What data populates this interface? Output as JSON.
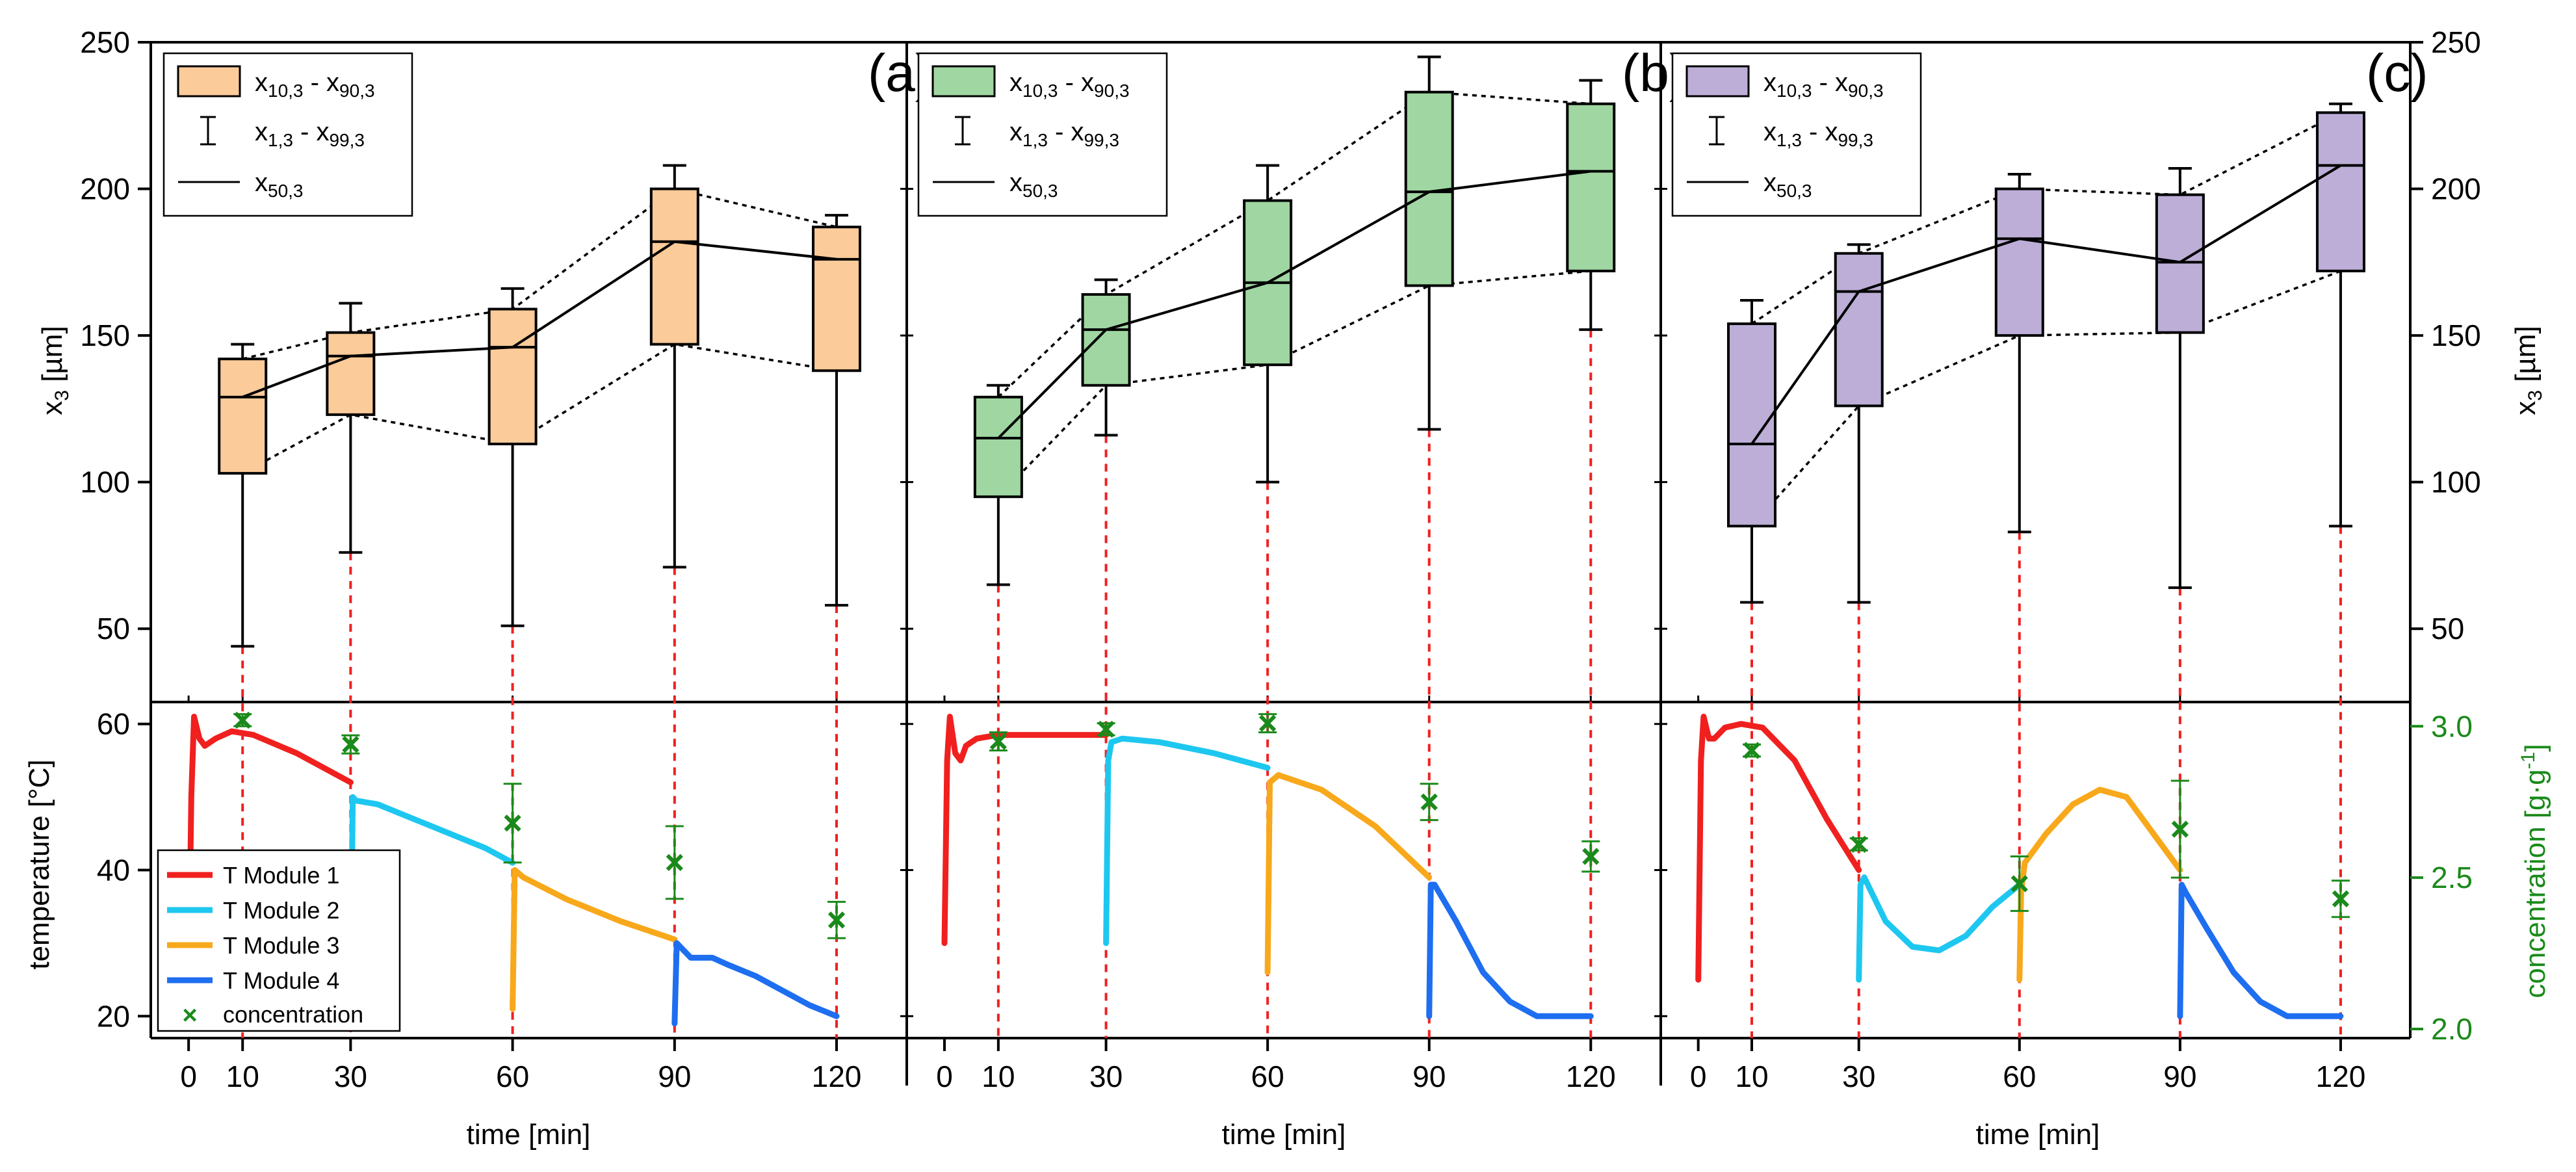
{
  "panel_labels": [
    "(a)",
    "(b)",
    "(c)"
  ],
  "top_ylabel_left": "x",
  "top_ylabel_sub": "3",
  "top_ylabel_unit": " [µm]",
  "bottom_ylabel_left": "temperature [°C]",
  "bottom_ylabel_right": "concentration [g·g",
  "bottom_ylabel_right_sup": "-1",
  "bottom_ylabel_right_end": "]",
  "xlabel": "time [min]",
  "legend_top": {
    "box_main": "x",
    "box_s1": "10,3",
    "box_mid": " - x",
    "box_s2": "90,3",
    "whisker_main": "x",
    "whisker_s1": "1,3",
    "whisker_mid": " - x",
    "whisker_s2": "99,3",
    "median_main": "x",
    "median_s1": "50,3"
  },
  "legend_bottom": [
    "T Module 1",
    "T Module 2",
    "T Module 3",
    "T Module 4",
    "concentration"
  ],
  "colors": {
    "box_a": "#fccb9a",
    "box_b": "#9fd6a1",
    "box_c": "#bcaed6",
    "module1": "#f0201f",
    "module2": "#1ec7f0",
    "module3": "#f8a81b",
    "module4": "#1e6ef0",
    "concentration": "#1a8a1a",
    "dashed_red": "#f02020"
  },
  "chart_data": [
    {
      "type": "box",
      "panel": "(a)",
      "x": [
        10,
        30,
        60,
        90,
        120
      ],
      "x10_3": [
        103,
        123,
        113,
        147,
        138
      ],
      "x90_3": [
        142,
        151,
        159,
        200,
        187
      ],
      "x50_3": [
        129,
        143,
        146,
        182,
        176
      ],
      "x1_3": [
        44,
        76,
        51,
        71,
        58
      ],
      "x99_3": [
        147,
        161,
        166,
        208,
        191
      ],
      "ylabel": "x3 [µm]",
      "ylim": [
        25,
        250
      ],
      "xlim": [
        -7,
        133
      ],
      "yticks": [
        50,
        100,
        150,
        200,
        250
      ]
    },
    {
      "type": "box",
      "panel": "(b)",
      "x": [
        10,
        30,
        60,
        90,
        120
      ],
      "x10_3": [
        95,
        133,
        140,
        167,
        172
      ],
      "x90_3": [
        129,
        164,
        196,
        233,
        229
      ],
      "x50_3": [
        115,
        152,
        168,
        199,
        206
      ],
      "x1_3": [
        65,
        116,
        100,
        118,
        152
      ],
      "x99_3": [
        133,
        169,
        208,
        245,
        237
      ],
      "ylim": [
        25,
        250
      ],
      "xlim": [
        -7,
        133
      ]
    },
    {
      "type": "box",
      "panel": "(c)",
      "x": [
        10,
        30,
        60,
        90,
        120
      ],
      "x10_3": [
        85,
        126,
        150,
        151,
        172
      ],
      "x90_3": [
        154,
        178,
        200,
        198,
        226
      ],
      "x50_3": [
        113,
        165,
        183,
        175,
        208
      ],
      "x1_3": [
        59,
        59,
        83,
        64,
        85
      ],
      "x99_3": [
        162,
        181,
        205,
        207,
        229
      ],
      "ylabel": "x3 [µm]",
      "ylim": [
        25,
        250
      ],
      "xlim": [
        -7,
        133
      ],
      "yticks": [
        50,
        100,
        150,
        200,
        250
      ]
    },
    {
      "type": "line",
      "panel": "(a)",
      "ylabel": "temperature [°C]",
      "xlabel": "time [min]",
      "ylim": [
        17,
        63
      ],
      "xlim": [
        -7,
        133
      ],
      "yticks": [
        20,
        40,
        60
      ],
      "xticks": [
        0,
        10,
        30,
        60,
        90,
        120
      ],
      "series": [
        {
          "name": "T Module 1",
          "x": [
            0,
            0.5,
            1,
            2,
            3,
            5,
            8,
            12,
            20,
            30
          ],
          "y": [
            23,
            50,
            61,
            58,
            57,
            58,
            59,
            58.5,
            56,
            52
          ]
        },
        {
          "name": "T Module 2",
          "x": [
            30,
            30.4,
            31,
            35,
            45,
            55,
            60
          ],
          "y": [
            22,
            50,
            49.5,
            49,
            46,
            43,
            41
          ]
        },
        {
          "name": "T Module 3",
          "x": [
            60,
            60.4,
            62,
            70,
            80,
            90
          ],
          "y": [
            21,
            40,
            39,
            36,
            33,
            30.5
          ]
        },
        {
          "name": "T Module 4",
          "x": [
            90,
            90.4,
            93,
            97,
            100,
            105,
            110,
            115,
            120
          ],
          "y": [
            19,
            30,
            28,
            28,
            27,
            25.5,
            23.5,
            21.5,
            20
          ]
        }
      ],
      "concentration": {
        "x": [
          10,
          30,
          60,
          90,
          120
        ],
        "y": [
          3.02,
          2.94,
          2.68,
          2.55,
          2.36
        ],
        "err": [
          0.02,
          0.03,
          0.13,
          0.12,
          0.06
        ]
      }
    },
    {
      "type": "line",
      "panel": "(b)",
      "ylim": [
        17,
        63
      ],
      "xlim": [
        -7,
        133
      ],
      "series": [
        {
          "name": "T Module 1",
          "x": [
            0,
            0.5,
            1,
            2,
            3,
            4,
            6,
            10,
            20,
            30
          ],
          "y": [
            30,
            55,
            61,
            56,
            55,
            57,
            58,
            58.5,
            58.5,
            58.5
          ]
        },
        {
          "name": "T Module 2",
          "x": [
            30,
            30.4,
            31,
            33,
            40,
            50,
            60
          ],
          "y": [
            30,
            55,
            57.5,
            58,
            57.5,
            56,
            54
          ]
        },
        {
          "name": "T Module 3",
          "x": [
            60,
            60.4,
            62,
            70,
            80,
            90
          ],
          "y": [
            26,
            52,
            53,
            51,
            46,
            39
          ]
        },
        {
          "name": "T Module 4",
          "x": [
            90,
            90.3,
            91,
            95,
            100,
            105,
            110,
            115,
            120
          ],
          "y": [
            20,
            38,
            38,
            33,
            26,
            22,
            20,
            20,
            20
          ]
        }
      ],
      "concentration": {
        "x": [
          10,
          30,
          60,
          90,
          120
        ],
        "y": [
          2.95,
          2.99,
          3.01,
          2.75,
          2.57
        ],
        "err": [
          0.03,
          0.02,
          0.03,
          0.06,
          0.05
        ]
      }
    },
    {
      "type": "line",
      "panel": "(c)",
      "ylim": [
        17,
        63
      ],
      "xlim": [
        -7,
        133
      ],
      "series": [
        {
          "name": "T Module 1",
          "x": [
            0,
            0.5,
            1,
            2,
            3,
            5,
            8,
            12,
            18,
            24,
            30
          ],
          "y": [
            25,
            55,
            61,
            58,
            58,
            59.5,
            60,
            59.5,
            55,
            47,
            40
          ]
        },
        {
          "name": "T Module 2",
          "x": [
            30,
            30.3,
            31,
            35,
            40,
            45,
            50,
            55,
            60
          ],
          "y": [
            25,
            38,
            39,
            33,
            29.5,
            29,
            31,
            35,
            38
          ]
        },
        {
          "name": "T Module 3",
          "x": [
            60,
            60.3,
            61,
            65,
            70,
            75,
            80,
            85,
            90
          ],
          "y": [
            25,
            37,
            41,
            45,
            49,
            51,
            50,
            45,
            40
          ]
        },
        {
          "name": "T Module 4",
          "x": [
            90,
            90.3,
            91,
            95,
            100,
            105,
            110,
            115,
            120
          ],
          "y": [
            20,
            38,
            37,
            32,
            26,
            22,
            20,
            20,
            20
          ]
        }
      ],
      "concentration": {
        "x": [
          10,
          30,
          60,
          90,
          120
        ],
        "y": [
          2.92,
          2.61,
          2.48,
          2.66,
          2.43
        ],
        "err": [
          0.02,
          0.02,
          0.09,
          0.16,
          0.06
        ]
      },
      "ylabel_right": "concentration [g·g-1]",
      "ylim_right": [
        1.97,
        3.08
      ],
      "yticks_right": [
        2.0,
        2.5,
        3.0
      ]
    }
  ]
}
